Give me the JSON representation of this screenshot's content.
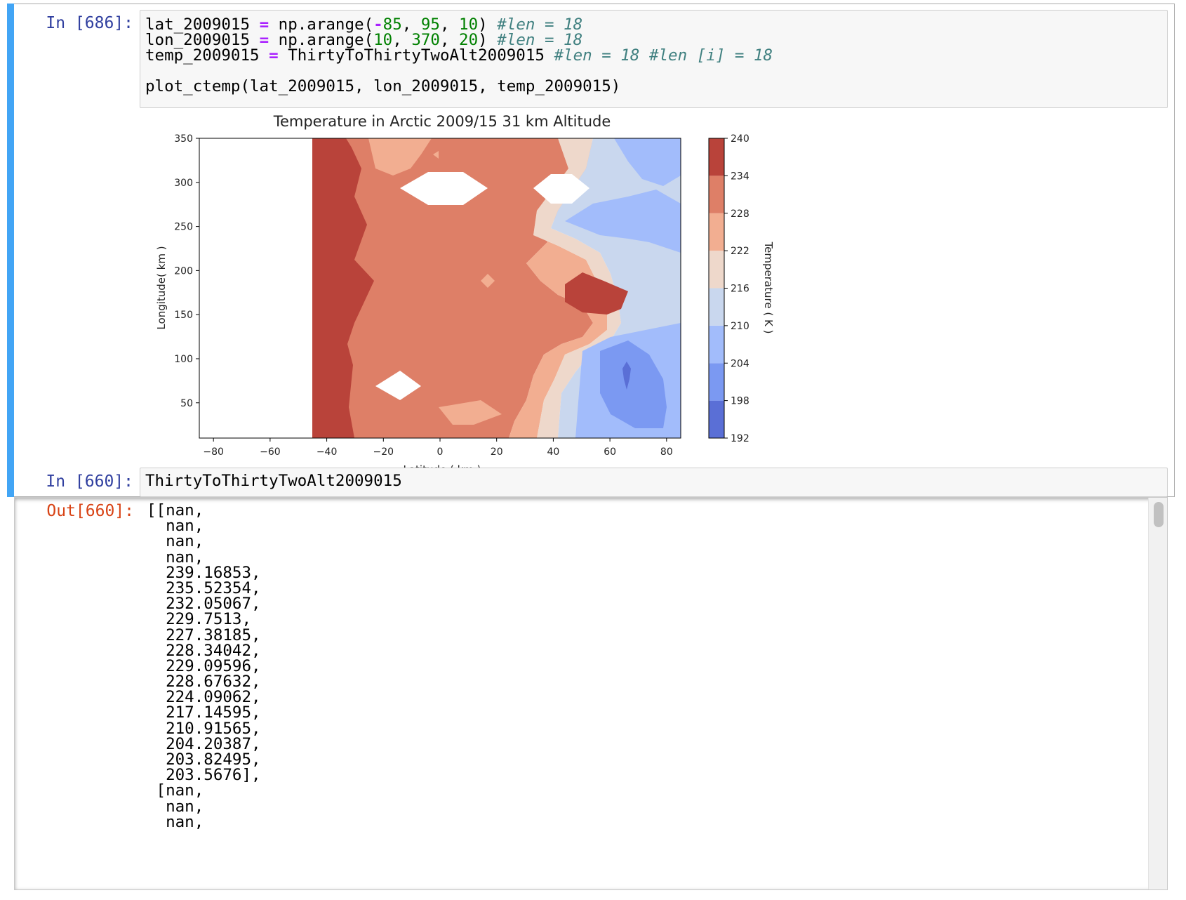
{
  "cell1": {
    "prompt": "In [686]:",
    "code_lines": [
      [
        [
          "var",
          "lat_2009015 "
        ],
        [
          "op",
          "="
        ],
        [
          "var",
          " np.arange("
        ],
        [
          "op",
          "-"
        ],
        [
          "num",
          "85"
        ],
        [
          "var",
          ", "
        ],
        [
          "num",
          "95"
        ],
        [
          "var",
          ", "
        ],
        [
          "num",
          "10"
        ],
        [
          "var",
          ") "
        ],
        [
          "com",
          "#len = 18"
        ]
      ],
      [
        [
          "var",
          "lon_2009015 "
        ],
        [
          "op",
          "="
        ],
        [
          "var",
          " np.arange("
        ],
        [
          "num",
          "10"
        ],
        [
          "var",
          ", "
        ],
        [
          "num",
          "370"
        ],
        [
          "var",
          ", "
        ],
        [
          "num",
          "20"
        ],
        [
          "var",
          ") "
        ],
        [
          "com",
          "#len = 18"
        ]
      ],
      [
        [
          "var",
          "temp_2009015 "
        ],
        [
          "op",
          "="
        ],
        [
          "var",
          " ThirtyToThirtyTwoAlt2009015 "
        ],
        [
          "com",
          "#len = 18 #len [i] = 18"
        ]
      ],
      [
        [
          "var",
          ""
        ]
      ],
      [
        [
          "var",
          "plot_ctemp(lat_2009015, lon_2009015, temp_2009015)"
        ]
      ]
    ]
  },
  "chart_data": {
    "type": "contourf",
    "title": "Temperature in Arctic 2009/15 31 km Altitude",
    "xlabel": "Latitude ( km )",
    "ylabel": "Longitude( km )",
    "xlim": [
      -85,
      85
    ],
    "ylim": [
      10,
      350
    ],
    "xticks": [
      "−80",
      "−60",
      "−40",
      "−20",
      "0",
      "20",
      "40",
      "60",
      "80"
    ],
    "xtick_values": [
      -80,
      -60,
      -40,
      -20,
      0,
      20,
      40,
      60,
      80
    ],
    "yticks": [
      "50",
      "100",
      "150",
      "200",
      "250",
      "300",
      "350"
    ],
    "ytick_values": [
      50,
      100,
      150,
      200,
      250,
      300,
      350
    ],
    "colorbar_label": "Temperature ( K )",
    "levels": [
      192,
      198,
      204,
      210,
      216,
      222,
      228,
      234,
      240
    ],
    "level_labels": [
      "192",
      "198",
      "204",
      "210",
      "216",
      "222",
      "228",
      "234",
      "240"
    ],
    "level_colors": [
      "#5a6fd6",
      "#7b99f2",
      "#a2bcfb",
      "#c9d7ee",
      "#eed8cb",
      "#f2ae91",
      "#de7f67",
      "#b9433a"
    ],
    "grid": false,
    "nan_region_x": [
      -85,
      -45
    ]
  },
  "cell2": {
    "prompt": "In [660]:",
    "code": "ThirtyToThirtyTwoAlt2009015"
  },
  "output": {
    "prompt": "Out[660]:",
    "lines": [
      "[[nan,",
      "  nan,",
      "  nan,",
      "  nan,",
      "  239.16853,",
      "  235.52354,",
      "  232.05067,",
      "  229.7513,",
      "  227.38185,",
      "  228.34042,",
      "  229.09596,",
      "  228.67632,",
      "  224.09062,",
      "  217.14595,",
      "  210.91565,",
      "  204.20387,",
      "  203.82495,",
      "  203.5676],",
      " [nan,",
      "  nan,",
      "  nan,"
    ]
  }
}
